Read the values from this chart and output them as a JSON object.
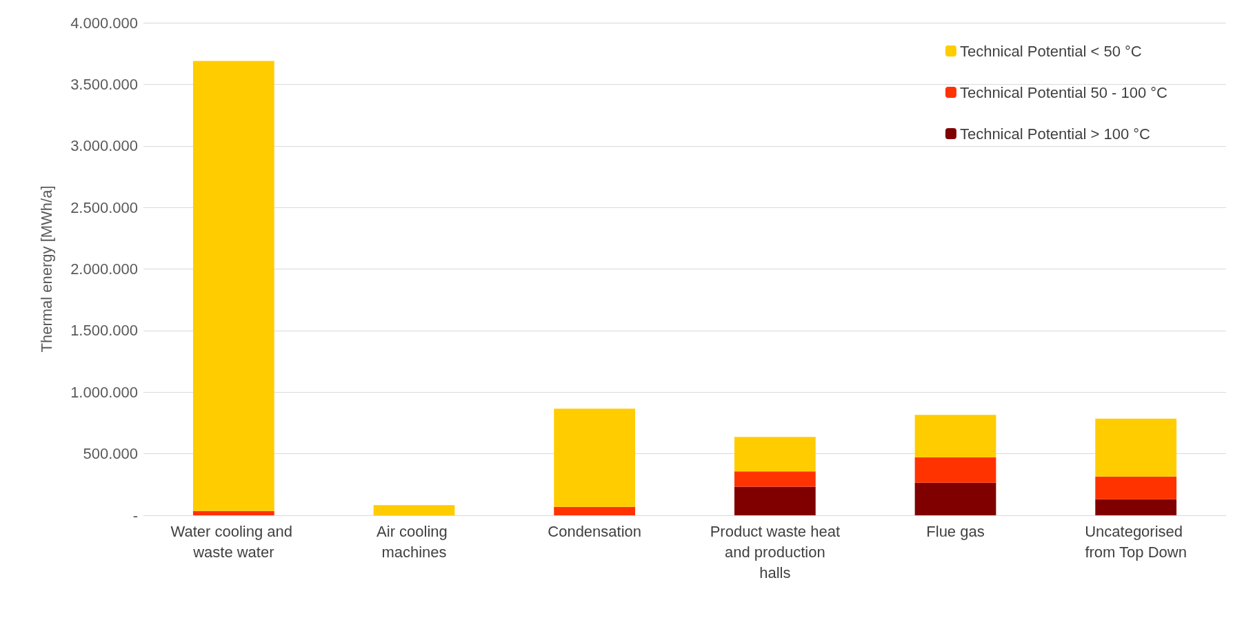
{
  "chart_data": {
    "type": "bar",
    "stacked": true,
    "ylabel": "Thermal energy [MWh/a]",
    "categories": [
      "Water cooling and waste water",
      "Air cooling machines",
      "Condensation",
      "Product waste heat and production halls",
      "Flue gas",
      "Uncategorised from Top Down"
    ],
    "series": [
      {
        "name": "Technical Potential > 100 °C",
        "color": "#800000",
        "values": [
          0,
          0,
          0,
          232000,
          265000,
          130000
        ]
      },
      {
        "name": "Technical Potential 50 - 100 °C",
        "color": "#ff3300",
        "values": [
          35000,
          0,
          69000,
          125000,
          205000,
          185000
        ]
      },
      {
        "name": "Technical Potential < 50 °C",
        "color": "#ffcc00",
        "values": [
          3655000,
          82000,
          797000,
          280000,
          345000,
          470000
        ]
      }
    ],
    "ylim": [
      0,
      4000000
    ],
    "yticks": [
      {
        "value": 0,
        "label": "-"
      },
      {
        "value": 500000,
        "label": "500.000"
      },
      {
        "value": 1000000,
        "label": "1.000.000"
      },
      {
        "value": 1500000,
        "label": "1.500.000"
      },
      {
        "value": 2000000,
        "label": "2.000.000"
      },
      {
        "value": 2500000,
        "label": "2.500.000"
      },
      {
        "value": 3000000,
        "label": "3.000.000"
      },
      {
        "value": 3500000,
        "label": "3.500.000"
      },
      {
        "value": 4000000,
        "label": "4.000.000"
      }
    ],
    "grid": "y",
    "legend": "top right"
  }
}
